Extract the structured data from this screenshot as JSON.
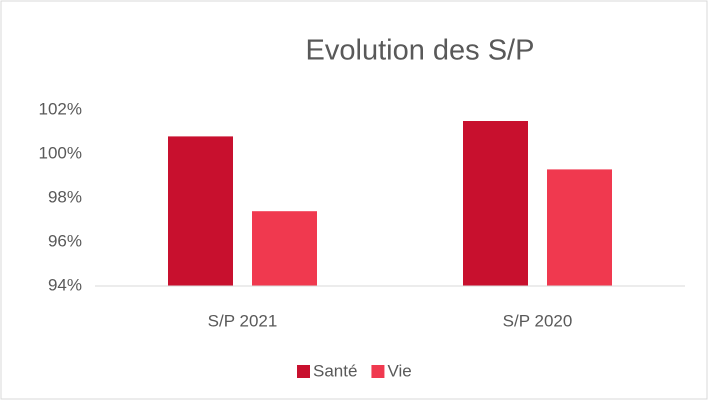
{
  "chart_data": {
    "type": "bar",
    "title": "Evolution des S/P",
    "categories": [
      "S/P 2021",
      "S/P 2020"
    ],
    "series": [
      {
        "name": "Santé",
        "color": "#c8102e",
        "values": [
          100.8,
          101.5
        ]
      },
      {
        "name": "Vie",
        "color": "#f0394f",
        "values": [
          97.4,
          99.3
        ]
      }
    ],
    "ylim": [
      94,
      102
    ],
    "yticks": [
      {
        "value": 94,
        "label": "94%"
      },
      {
        "value": 96,
        "label": "96%"
      },
      {
        "value": 98,
        "label": "98%"
      },
      {
        "value": 100,
        "label": "100%"
      },
      {
        "value": 102,
        "label": "102%"
      }
    ],
    "grid": false,
    "legend": "bottom"
  }
}
